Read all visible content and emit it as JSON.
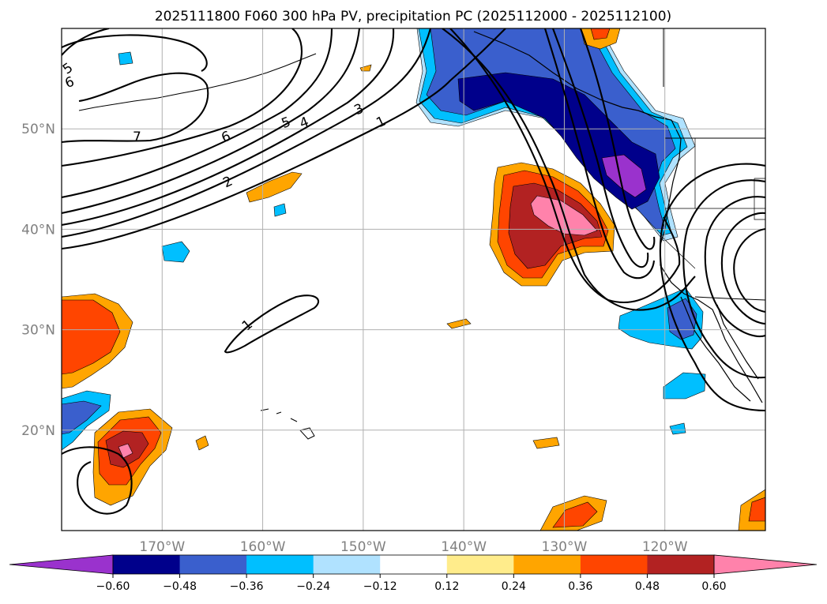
{
  "chart_data": {
    "type": "contour-map",
    "title": "2025111800 F060 300 hPa PV, precipitation PC (2025112000 - 2025112100)",
    "map": {
      "lon_range": [
        180,
        110
      ],
      "lat_range": [
        10,
        60
      ],
      "lon_ticks": [
        170,
        160,
        150,
        140,
        130,
        120
      ],
      "lon_tick_labels": [
        "170°W",
        "160°W",
        "150°W",
        "140°W",
        "130°W",
        "120°W"
      ],
      "lat_ticks": [
        50,
        40,
        30,
        20
      ],
      "lat_tick_labels": [
        "50°N",
        "40°N",
        "30°N",
        "20°N"
      ],
      "grid": true
    },
    "pv_contours": {
      "label": "300 hPa PV",
      "levels_labeled": [
        "1",
        "2",
        "3",
        "4",
        "5",
        "6",
        "7",
        "6",
        "1",
        "5"
      ]
    },
    "precip_pc": {
      "label": "precipitation PC",
      "colors": [
        "#9a32cd",
        "#00008b",
        "#3a5fcd",
        "#00bfff",
        "#b0e2ff",
        "#ffffff",
        "#ffec8b",
        "#ffa500",
        "#ff4500",
        "#b22222",
        "#ff82ab"
      ],
      "boundaries": [
        -0.6,
        -0.48,
        -0.36,
        -0.24,
        -0.12,
        0.12,
        0.24,
        0.36,
        0.48,
        0.6
      ],
      "tick_labels": [
        "−0.60",
        "−0.48",
        "−0.36",
        "−0.24",
        "−0.12",
        "0.12",
        "0.24",
        "0.36",
        "0.48",
        "0.60"
      ]
    }
  }
}
